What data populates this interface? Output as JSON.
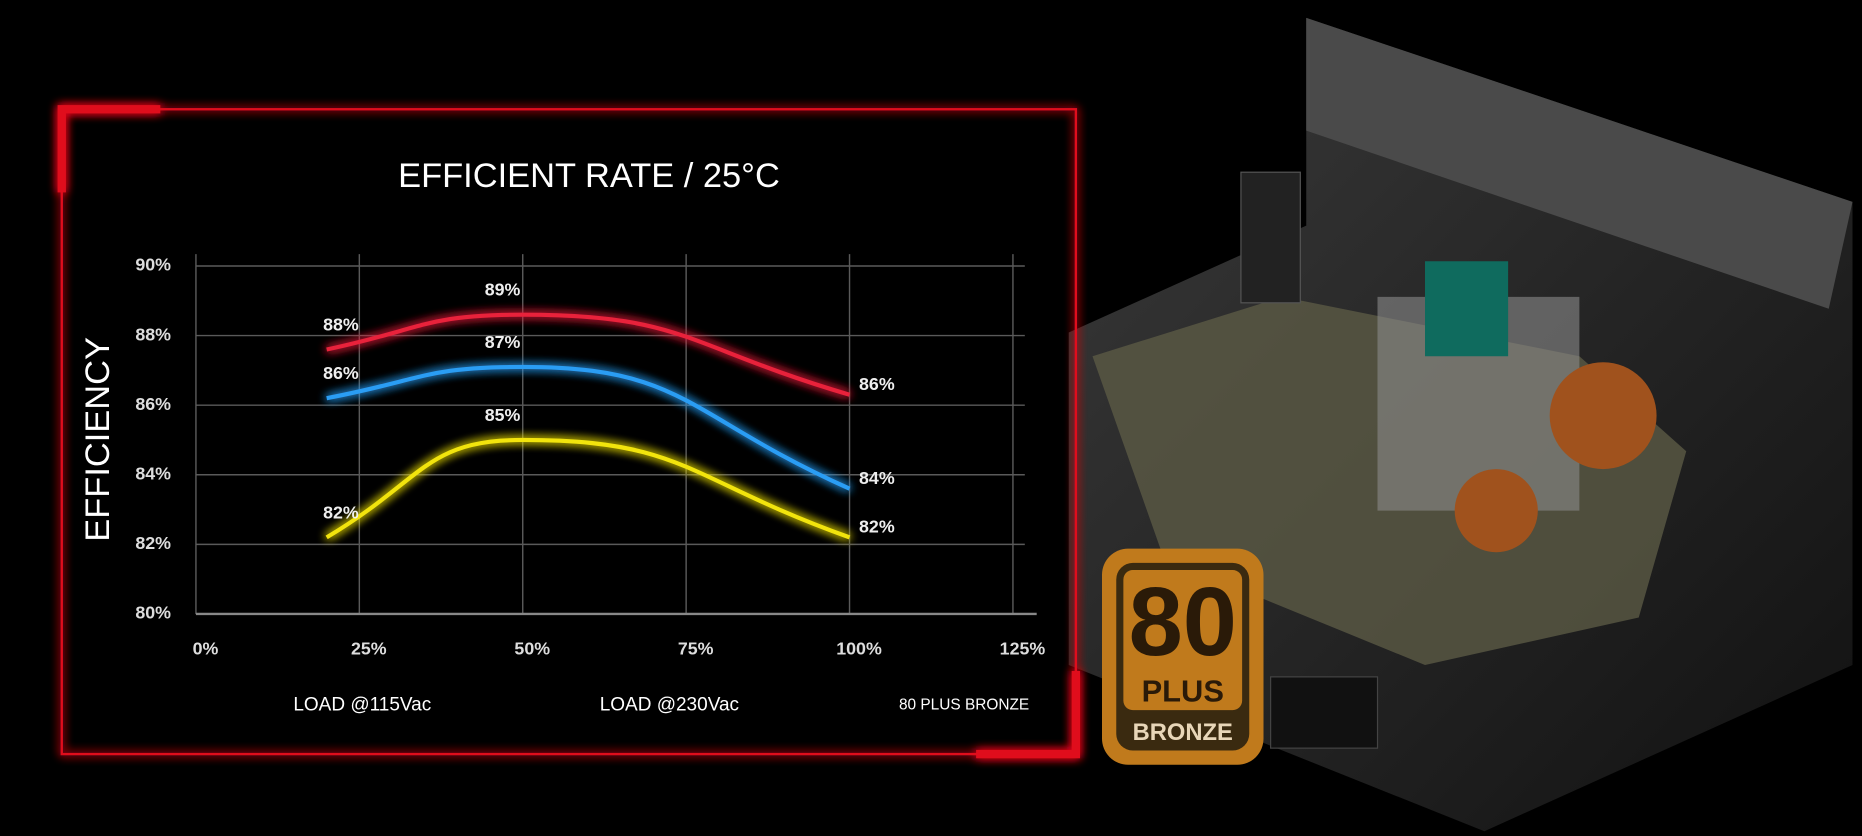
{
  "chart_data": {
    "type": "line",
    "title": "EFFICIENT RATE / 25°C",
    "y_label": "EFFICIENCY",
    "x": [
      20,
      50,
      100
    ],
    "xlim": [
      0,
      125
    ],
    "xticks": [
      {
        "value": 0,
        "label": "0%"
      },
      {
        "value": 25,
        "label": "25%"
      },
      {
        "value": 50,
        "label": "50%"
      },
      {
        "value": 75,
        "label": "75%"
      },
      {
        "value": 100,
        "label": "100%"
      },
      {
        "value": 125,
        "label": "125%"
      }
    ],
    "ylim": [
      80,
      90
    ],
    "yticks": [
      {
        "value": 80,
        "label": "80%"
      },
      {
        "value": 82,
        "label": "82%"
      },
      {
        "value": 84,
        "label": "84%"
      },
      {
        "value": 86,
        "label": "86%"
      },
      {
        "value": 88,
        "label": "88%"
      },
      {
        "value": 90,
        "label": "90%"
      }
    ],
    "grid": true,
    "series": [
      {
        "name": "LOAD @115Vac",
        "color": "#2a9df4",
        "values": [
          86.2,
          87.1,
          83.6
        ],
        "value_labels": [
          "86%",
          "87%",
          "84%"
        ]
      },
      {
        "name": "LOAD @230Vac",
        "color": "#e8203a",
        "values": [
          87.6,
          88.6,
          86.3
        ],
        "value_labels": [
          "88%",
          "89%",
          "86%"
        ]
      },
      {
        "name": "80 PLUS BRONZE",
        "color": "#f2e40c",
        "values": [
          82.2,
          85.0,
          82.2
        ],
        "value_labels": [
          "82%",
          "85%",
          "82%"
        ]
      }
    ]
  },
  "badge": {
    "number": "80",
    "plus": "PLUS",
    "tier": "BRONZE"
  }
}
